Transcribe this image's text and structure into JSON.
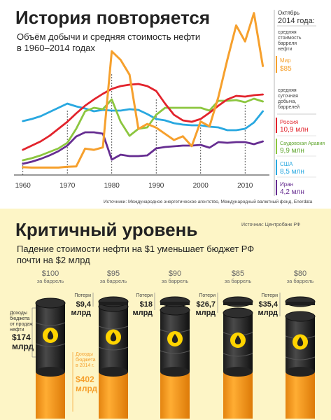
{
  "top": {
    "title": "История повторяется",
    "subtitle_line1": "Объём добычи и средняя стоимость нефти",
    "subtitle_line2": "в 1960–2014 годах",
    "source": "Источники: Международное энергетическое агентство, Международный валютный фонд, Enerdata",
    "x_ticks": [
      "1960",
      "1970",
      "1980",
      "1990",
      "2000",
      "2010"
    ],
    "legend_header_1": "Октябрь",
    "legend_header_2": "2014 года:",
    "price_label": "средняя стоимость барреля нефти",
    "prod_label": "средняя суточная добыча, баррелей",
    "legend": [
      {
        "name": "Мир",
        "value": "$85",
        "color": "#f6a02d"
      },
      {
        "name": "Россия",
        "value": "10,9 млн",
        "color": "#e2232c"
      },
      {
        "name": "Саудовская Аравия",
        "value": "9,9 млн",
        "color": "#8cc63f"
      },
      {
        "name": "США",
        "value": "8,5 млн",
        "color": "#29a8e0"
      },
      {
        "name": "Иран",
        "value": "4,2 млн",
        "color": "#662d91"
      }
    ]
  },
  "chart_data": {
    "type": "line",
    "title": "История повторяется",
    "x": [
      1960,
      1962,
      1964,
      1966,
      1968,
      1970,
      1972,
      1974,
      1976,
      1978,
      1980,
      1982,
      1984,
      1986,
      1988,
      1990,
      1992,
      1994,
      1996,
      1998,
      2000,
      2002,
      2004,
      2006,
      2008,
      2010,
      2012,
      2014
    ],
    "xlim": [
      1958,
      2015
    ],
    "series": [
      {
        "name": "Мир",
        "color": "#f6a02d",
        "values": [
          2.9,
          2.6,
          2.6,
          2.6,
          2.6,
          3.3,
          3.5,
          18,
          17,
          19,
          97,
          90,
          78,
          34,
          38,
          35,
          30,
          25,
          28,
          20,
          40,
          36,
          60,
          90,
          118,
          105,
          128,
          85
        ]
      },
      {
        "name": "Россия",
        "color": "#e2232c",
        "values": [
          3.0,
          3.6,
          4.2,
          5.0,
          6.0,
          7.0,
          8.2,
          9.3,
          10.2,
          11.0,
          11.7,
          12.1,
          12.3,
          12.4,
          12.1,
          11.4,
          9.6,
          8.0,
          7.2,
          7.0,
          7.4,
          8.3,
          9.3,
          10.2,
          10.7,
          10.6,
          10.8,
          10.9
        ]
      },
      {
        "name": "Саудовская Аравия",
        "color": "#8cc63f",
        "values": [
          1.5,
          1.8,
          2.2,
          2.7,
          3.2,
          4.0,
          6.0,
          8.5,
          9.0,
          8.8,
          10.2,
          7.0,
          5.0,
          6.0,
          6.2,
          8.0,
          9.0,
          9.0,
          9.0,
          9.0,
          9.0,
          8.6,
          10.0,
          10.0,
          10.1,
          9.8,
          10.3,
          9.9
        ]
      },
      {
        "name": "США",
        "color": "#29a8e0",
        "values": [
          7.1,
          7.4,
          7.8,
          8.4,
          9.0,
          9.6,
          9.2,
          8.9,
          8.5,
          8.7,
          8.6,
          8.6,
          8.8,
          8.7,
          8.1,
          7.4,
          7.2,
          6.8,
          6.6,
          6.5,
          6.5,
          6.3,
          6.2,
          5.8,
          5.8,
          6.0,
          6.9,
          8.5
        ]
      },
      {
        "name": "Иран",
        "color": "#662d91",
        "values": [
          1.0,
          1.3,
          1.7,
          2.2,
          2.8,
          3.6,
          4.9,
          5.5,
          5.5,
          5.3,
          1.6,
          2.3,
          2.1,
          2.1,
          2.2,
          3.2,
          3.4,
          3.5,
          3.6,
          3.6,
          3.7,
          3.3,
          4.1,
          4.0,
          4.1,
          4.1,
          3.8,
          4.2
        ]
      }
    ]
  },
  "bottom": {
    "title": "Критичный уровень",
    "source": "Источник: Центробанк РФ",
    "subtitle_line1": "Падение стоимости нефти на $1 уменьшает бюджет РФ",
    "subtitle_line2": "почти на $2 млрд",
    "unit_label": "за баррель",
    "barrels": [
      {
        "price": "$100",
        "loss_label": "",
        "loss_value": ""
      },
      {
        "price": "$95",
        "loss_label": "Потери",
        "loss_value": "$9,4 млрд"
      },
      {
        "price": "$90",
        "loss_label": "Потери",
        "loss_value": "$18 млрд"
      },
      {
        "price": "$85",
        "loss_label": "Потери",
        "loss_value": "$26,7 млрд"
      },
      {
        "price": "$80",
        "loss_label": "Потери",
        "loss_value": "$35,4 млрд"
      }
    ],
    "left_label_1": "Доходы",
    "left_label_2": "бюджета",
    "left_label_3": "от продаж",
    "left_label_4": "нефти",
    "left_value": "$174 млрд",
    "orange_label_1": "Доходы",
    "orange_label_2": "бюджета",
    "orange_label_3": "в 2014 г.",
    "orange_value": "$402 млрд"
  }
}
